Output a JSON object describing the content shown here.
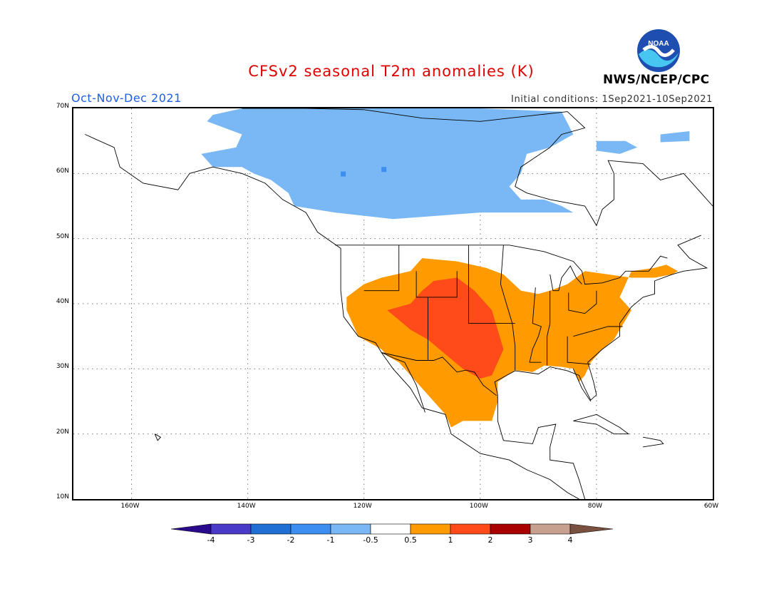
{
  "title": "CFSv2 seasonal T2m anomalies (K)",
  "period": "Oct-Nov-Dec 2021",
  "initial_conditions": "Initial conditions: 1Sep2021-10Sep2021",
  "agency": "NWS/NCEP/CPC",
  "logo_text": "NOAA",
  "lat_labels": [
    "70N",
    "60N",
    "50N",
    "40N",
    "30N",
    "20N",
    "10N"
  ],
  "lon_labels": [
    "160W",
    "140W",
    "120W",
    "100W",
    "80W",
    "60W"
  ],
  "colorbar": {
    "labels": [
      "-4",
      "-3",
      "-2",
      "-1",
      "-0.5",
      "0.5",
      "1",
      "2",
      "3",
      "4"
    ],
    "colors": [
      "#2a0a8c",
      "#4a3ac8",
      "#1f6fd4",
      "#3c8ef0",
      "#7ab8f5",
      "#ffffff",
      "#ff9a00",
      "#ff4a1a",
      "#a80000",
      "#c8a090",
      "#7a5040"
    ]
  },
  "colors": {
    "cold_light": "#7ab8f5",
    "cold": "#3c8ef0",
    "warm": "#ff9a00",
    "warmer": "#ff4a1a"
  }
}
